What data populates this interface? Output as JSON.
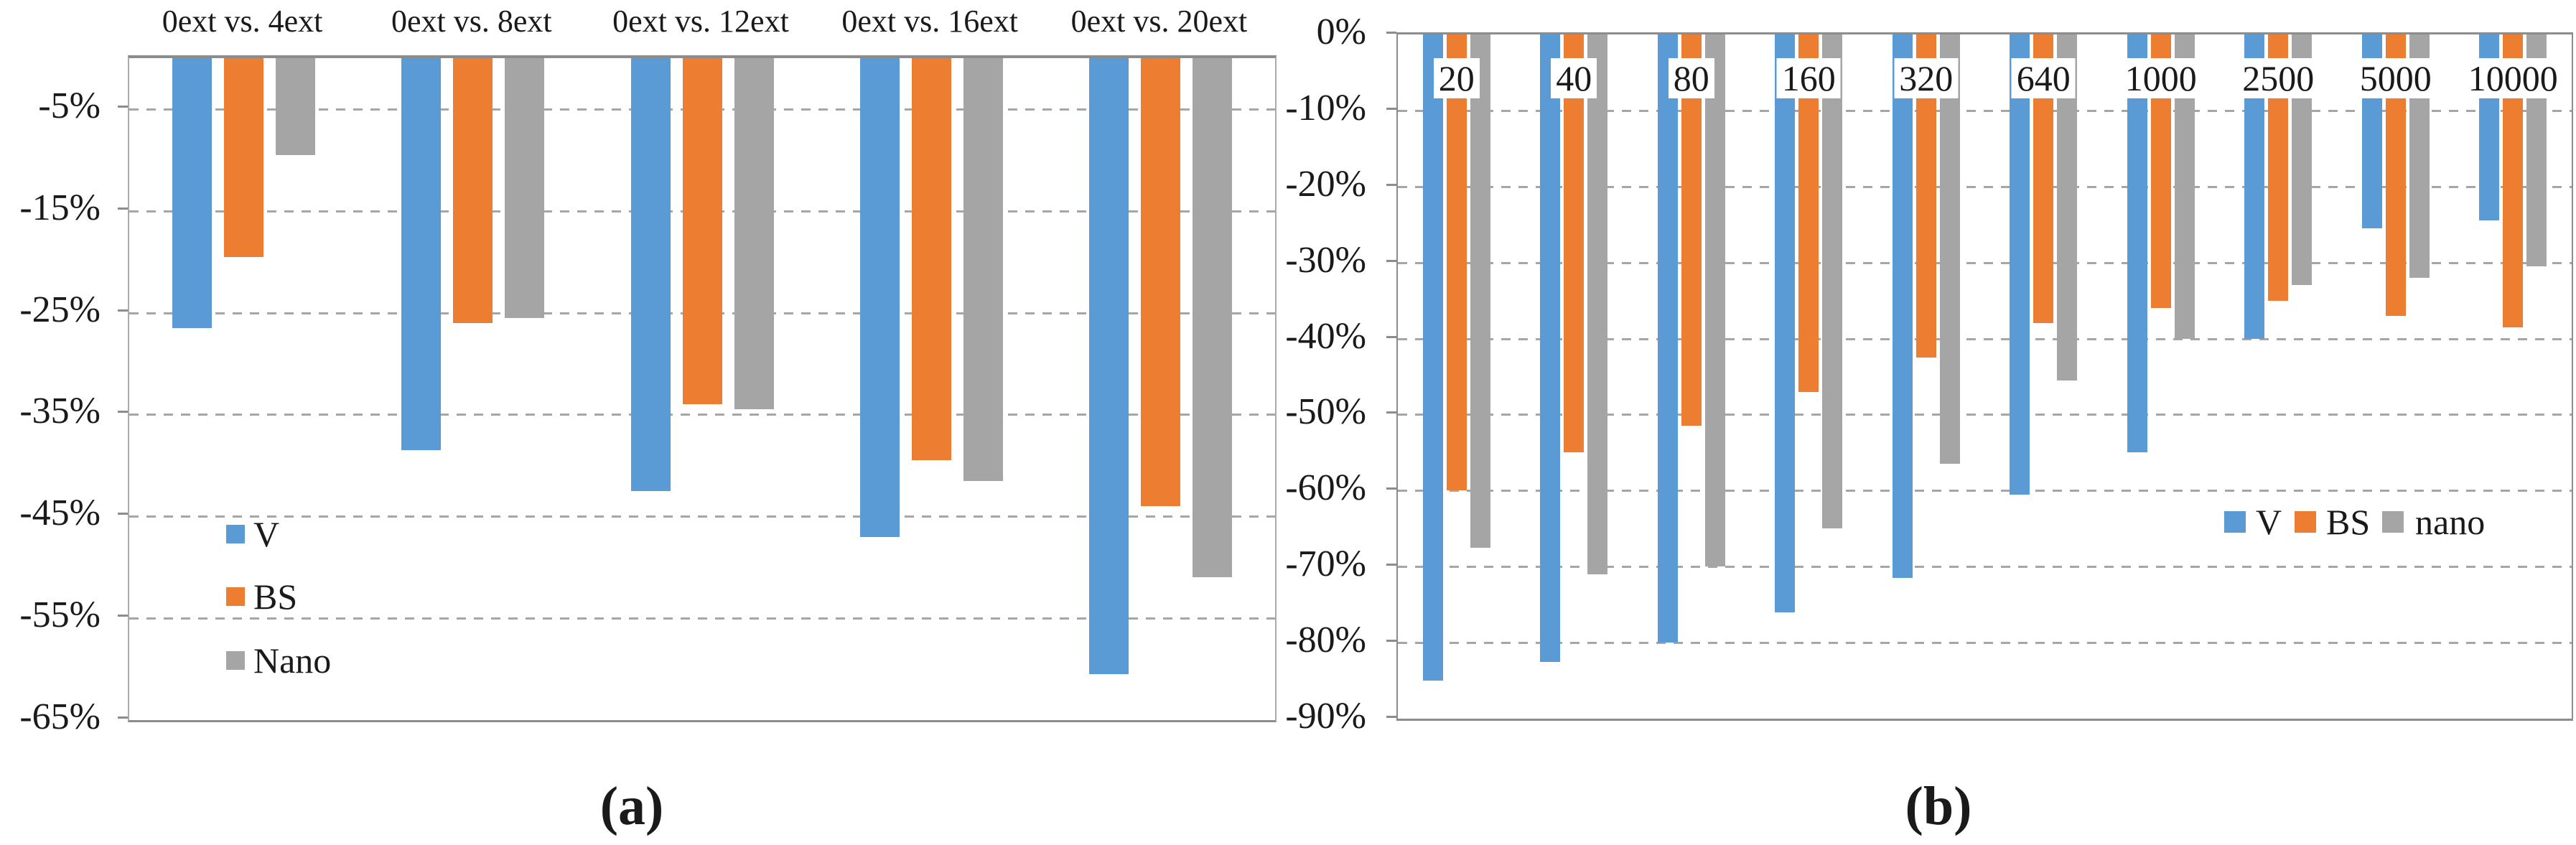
{
  "figure": {
    "description": "Two grouped negative-percentage bar charts side by side",
    "background": "#ffffff",
    "text_color": "#1a1a1a",
    "gridline_color": "#a6a6a6",
    "axis_color": "#8c8c8c"
  },
  "colors": {
    "V": "#5B9BD5",
    "BS": "#ED7D31",
    "nano": "#A5A5A5"
  },
  "chart_data": [
    {
      "id": "a",
      "type": "bar",
      "caption": "(a)",
      "categories": [
        "0ext vs. 4ext",
        "0ext vs. 8ext",
        "0ext vs. 12ext",
        "0ext vs. 16ext",
        "0ext vs. 20ext"
      ],
      "series": [
        {
          "name": "V",
          "color": "#5B9BD5",
          "values": [
            -26.5,
            -38.5,
            -42.5,
            -47.0,
            -60.5
          ]
        },
        {
          "name": "BS",
          "color": "#ED7D31",
          "values": [
            -19.5,
            -26.0,
            -34.0,
            -39.5,
            -44.0
          ]
        },
        {
          "name": "Nano",
          "color": "#A5A5A5",
          "values": [
            -9.5,
            -25.5,
            -34.5,
            -41.5,
            -51.0
          ]
        }
      ],
      "ylim": [
        -65,
        0
      ],
      "ytick_values": [
        -5,
        -15,
        -25,
        -35,
        -45,
        -55,
        -65
      ],
      "ytick_labels": [
        "-5%",
        "-15%",
        "-25%",
        "-35%",
        "-45%",
        "-55%",
        "-65%"
      ],
      "gridline_values": [
        -5,
        -15,
        -25,
        -35,
        -45,
        -55
      ],
      "grid": "dashed horizontal",
      "category_label_position": "above plot",
      "legend": {
        "labels": [
          "V",
          "BS",
          "Nano"
        ],
        "orientation": "vertical",
        "position": "inside left, mid-height"
      }
    },
    {
      "id": "b",
      "type": "bar",
      "caption": "(b)",
      "categories": [
        "20",
        "40",
        "80",
        "160",
        "320",
        "640",
        "1000",
        "2500",
        "5000",
        "10000"
      ],
      "series": [
        {
          "name": "V",
          "color": "#5B9BD5",
          "values": [
            -85.0,
            -82.5,
            -80.0,
            -76.0,
            -71.5,
            -60.5,
            -55.0,
            -40.0,
            -25.5,
            -24.5
          ]
        },
        {
          "name": "BS",
          "color": "#ED7D31",
          "values": [
            -60.0,
            -55.0,
            -51.5,
            -47.0,
            -42.5,
            -38.0,
            -36.0,
            -35.0,
            -37.0,
            -38.5
          ]
        },
        {
          "name": "nano",
          "color": "#A5A5A5",
          "values": [
            -67.5,
            -71.0,
            -70.0,
            -65.0,
            -56.5,
            -45.5,
            -40.0,
            -33.0,
            -32.0,
            -30.5
          ]
        }
      ],
      "ylim": [
        -90,
        0
      ],
      "ytick_values": [
        0,
        -10,
        -20,
        -30,
        -40,
        -50,
        -60,
        -70,
        -80,
        -90
      ],
      "ytick_labels": [
        "0%",
        "-10%",
        "-20%",
        "-30%",
        "-40%",
        "-50%",
        "-60%",
        "-70%",
        "-80%",
        "-90%"
      ],
      "gridline_values": [
        -10,
        -20,
        -30,
        -40,
        -50,
        -60,
        -70,
        -80
      ],
      "grid": "dashed horizontal",
      "category_label_position": "inside top, white boxes over bars",
      "legend": {
        "labels": [
          "V",
          "BS",
          "nano"
        ],
        "orientation": "horizontal",
        "position": "inside right, at about -63%"
      }
    }
  ]
}
